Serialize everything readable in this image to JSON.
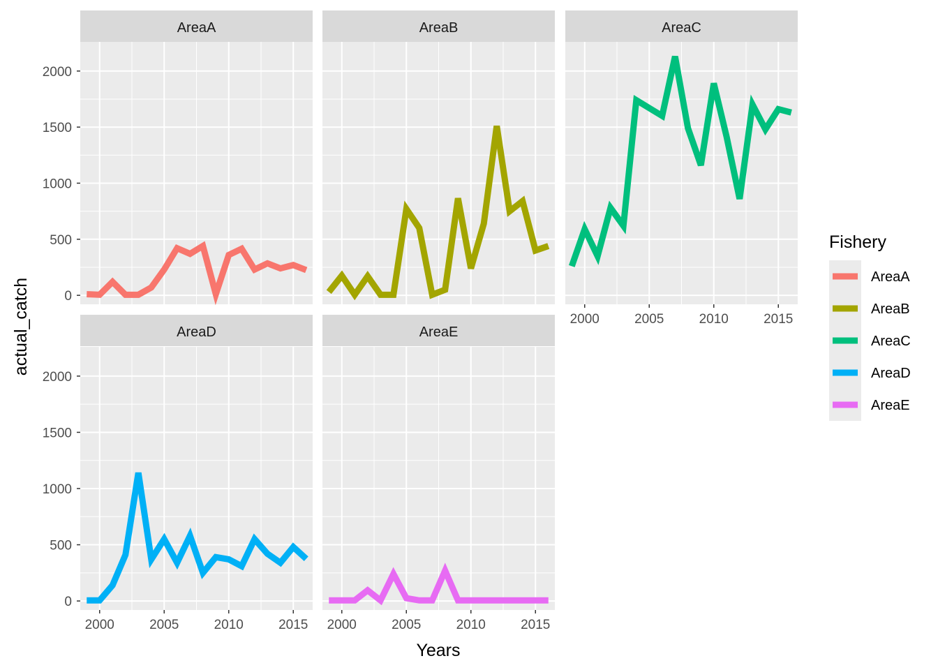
{
  "chart_data": {
    "type": "line",
    "facet_type": "facet_wrap",
    "xlabel": "Years",
    "ylabel": "actual_catch",
    "x_ticks": [
      2000,
      2005,
      2010,
      2015
    ],
    "y_ticks": [
      0,
      500,
      1000,
      1500,
      2000
    ],
    "xlim": [
      1998.5,
      2016.5
    ],
    "ylim": [
      -80,
      2260
    ],
    "grid": true,
    "legend": {
      "title": "Fishery",
      "position": "right",
      "entries": [
        "AreaA",
        "AreaB",
        "AreaC",
        "AreaD",
        "AreaE"
      ]
    },
    "x": [
      1999,
      2000,
      2001,
      2002,
      2003,
      2004,
      2005,
      2006,
      2007,
      2008,
      2009,
      2010,
      2011,
      2012,
      2013,
      2014,
      2015,
      2016
    ],
    "series": [
      {
        "name": "AreaA",
        "color": "#F8766D",
        "values": [
          10,
          5,
          120,
          5,
          5,
          70,
          230,
          420,
          370,
          440,
          10,
          360,
          415,
          230,
          285,
          240,
          270,
          225
        ]
      },
      {
        "name": "AreaB",
        "color": "#A3A500",
        "values": [
          30,
          175,
          5,
          170,
          5,
          5,
          770,
          600,
          5,
          50,
          865,
          240,
          640,
          1510,
          750,
          840,
          400,
          440
        ]
      },
      {
        "name": "AreaC",
        "color": "#00BF7D",
        "values": [
          260,
          590,
          350,
          780,
          620,
          1740,
          1670,
          1600,
          2130,
          1490,
          1160,
          1890,
          1410,
          860,
          1700,
          1480,
          1660,
          1630
        ]
      },
      {
        "name": "AreaD",
        "color": "#00B0F6",
        "values": [
          5,
          5,
          140,
          410,
          1140,
          370,
          550,
          340,
          580,
          250,
          390,
          370,
          310,
          550,
          420,
          340,
          480,
          375
        ]
      },
      {
        "name": "AreaE",
        "color": "#E76BF3",
        "values": [
          5,
          5,
          5,
          95,
          5,
          240,
          25,
          5,
          5,
          270,
          5,
          5,
          5,
          5,
          5,
          5,
          5,
          5
        ]
      }
    ]
  }
}
